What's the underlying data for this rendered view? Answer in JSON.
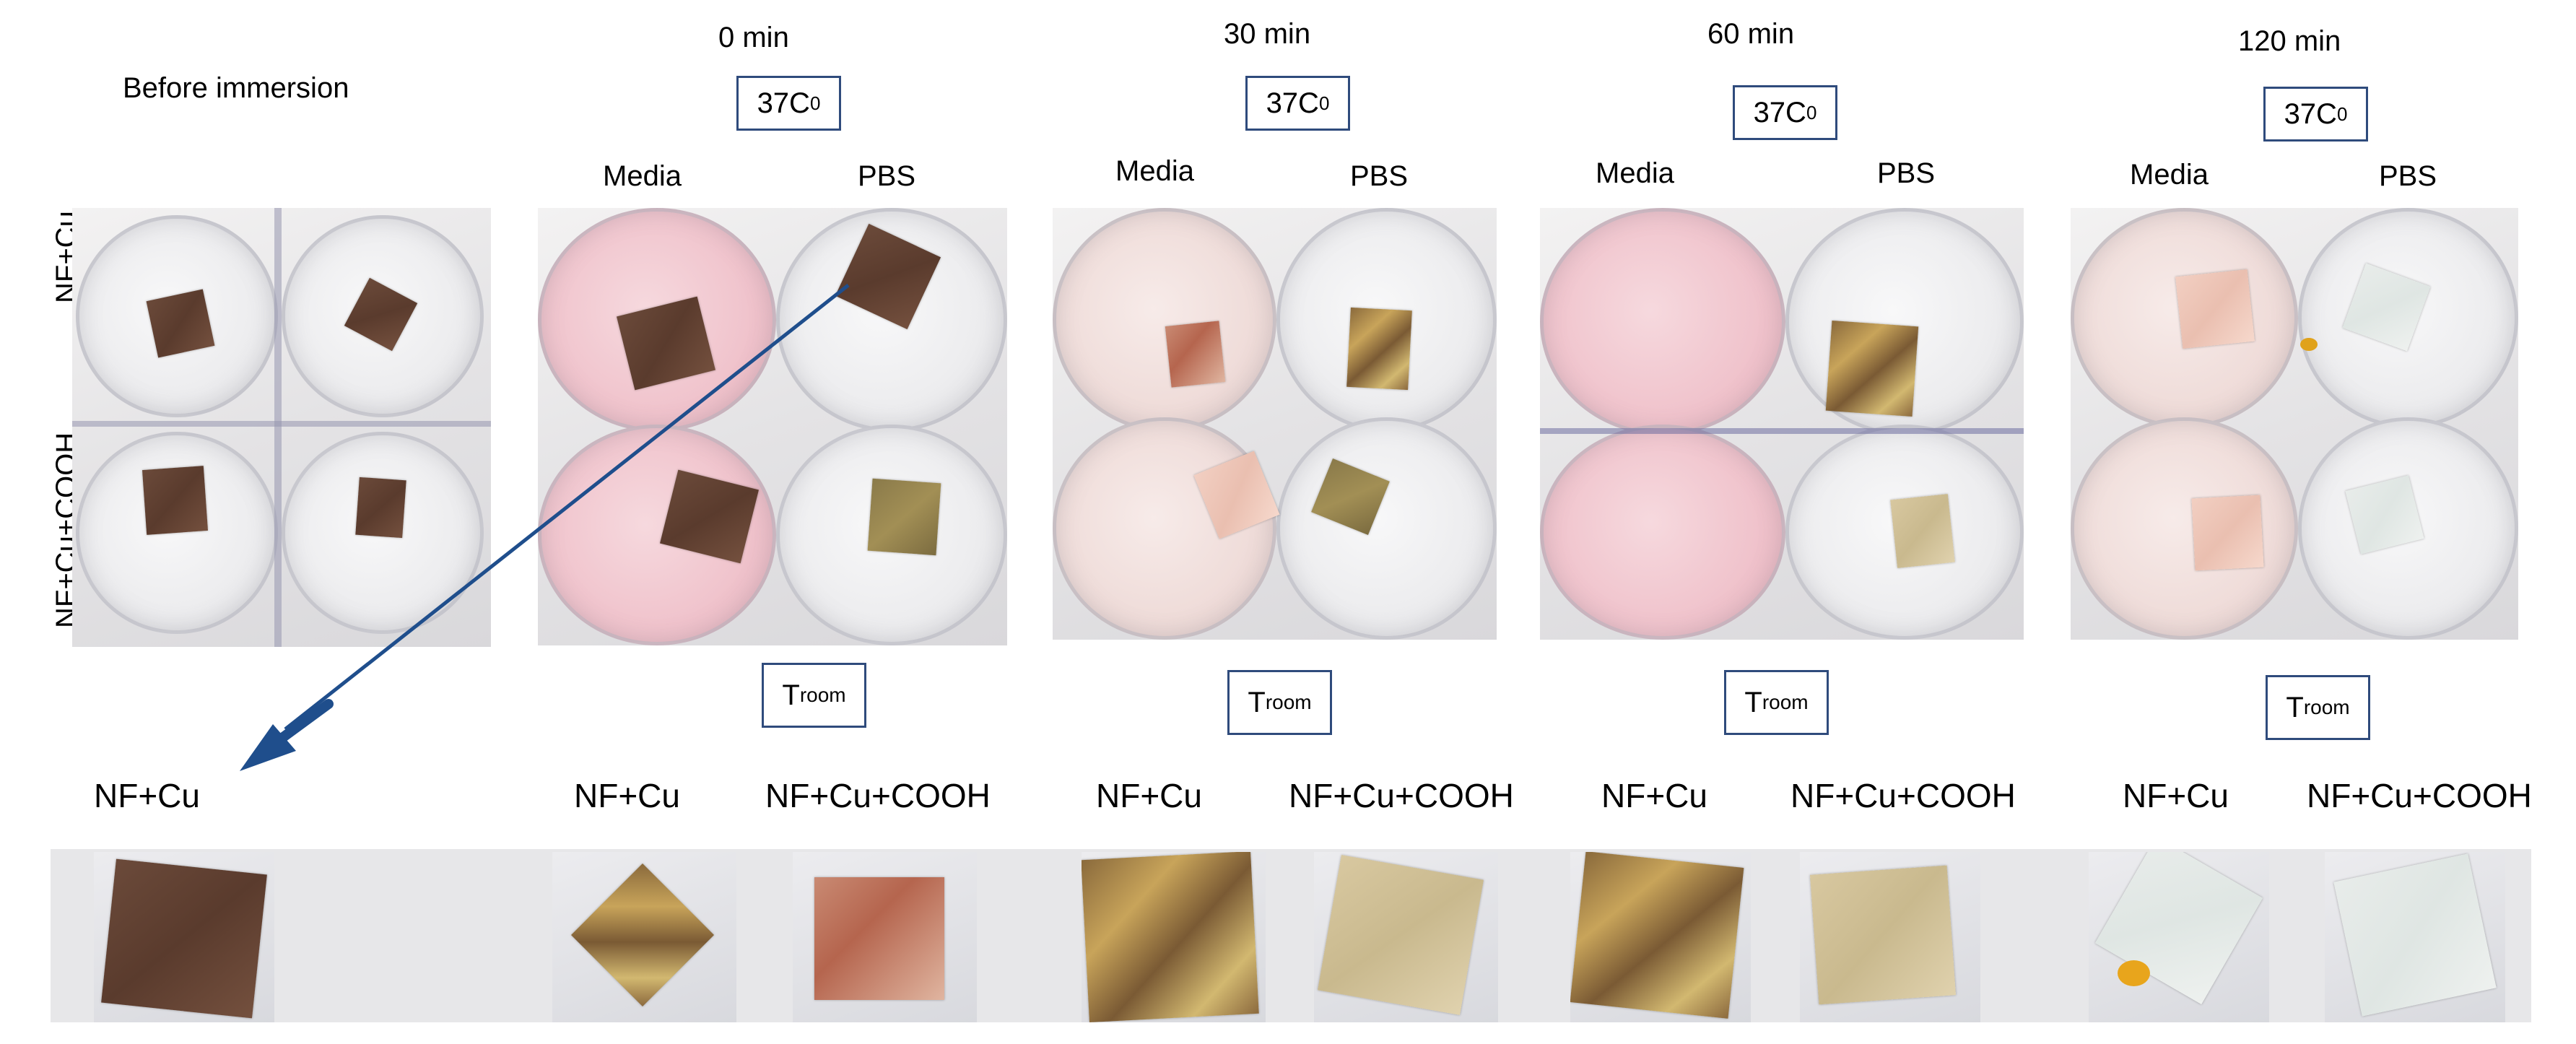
{
  "before_label": "Before immersion",
  "row_labels": {
    "top": "NF+Cu",
    "bottom": "NF+Cu+COOH"
  },
  "columns": [
    {
      "time": "0 min",
      "temp": "37C",
      "temp_sup": "0",
      "media": "Media",
      "pbs": "PBS",
      "troom": "T",
      "troom_sub": "room"
    },
    {
      "time": "30 min",
      "temp": "37C",
      "temp_sup": "0",
      "media": "Media",
      "pbs": "PBS",
      "troom": "T",
      "troom_sub": "room"
    },
    {
      "time": "60 min",
      "temp": "37C",
      "temp_sup": "0",
      "media": "Media",
      "pbs": "PBS",
      "troom": "T",
      "troom_sub": "room"
    },
    {
      "time": "120 min",
      "temp": "37C",
      "temp_sup": "0",
      "media": "Media",
      "pbs": "PBS",
      "troom": "T",
      "troom_sub": "room"
    }
  ],
  "bottom_labels": [
    "NF+Cu",
    "NF+Cu",
    "NF+Cu+COOH",
    "NF+Cu",
    "NF+Cu+COOH",
    "NF+Cu",
    "NF+Cu+COOH",
    "NF+Cu",
    "NF+Cu+COOH"
  ],
  "colors": {
    "box_border": "#2f4b7c",
    "arrow": "#1f4e8c"
  }
}
